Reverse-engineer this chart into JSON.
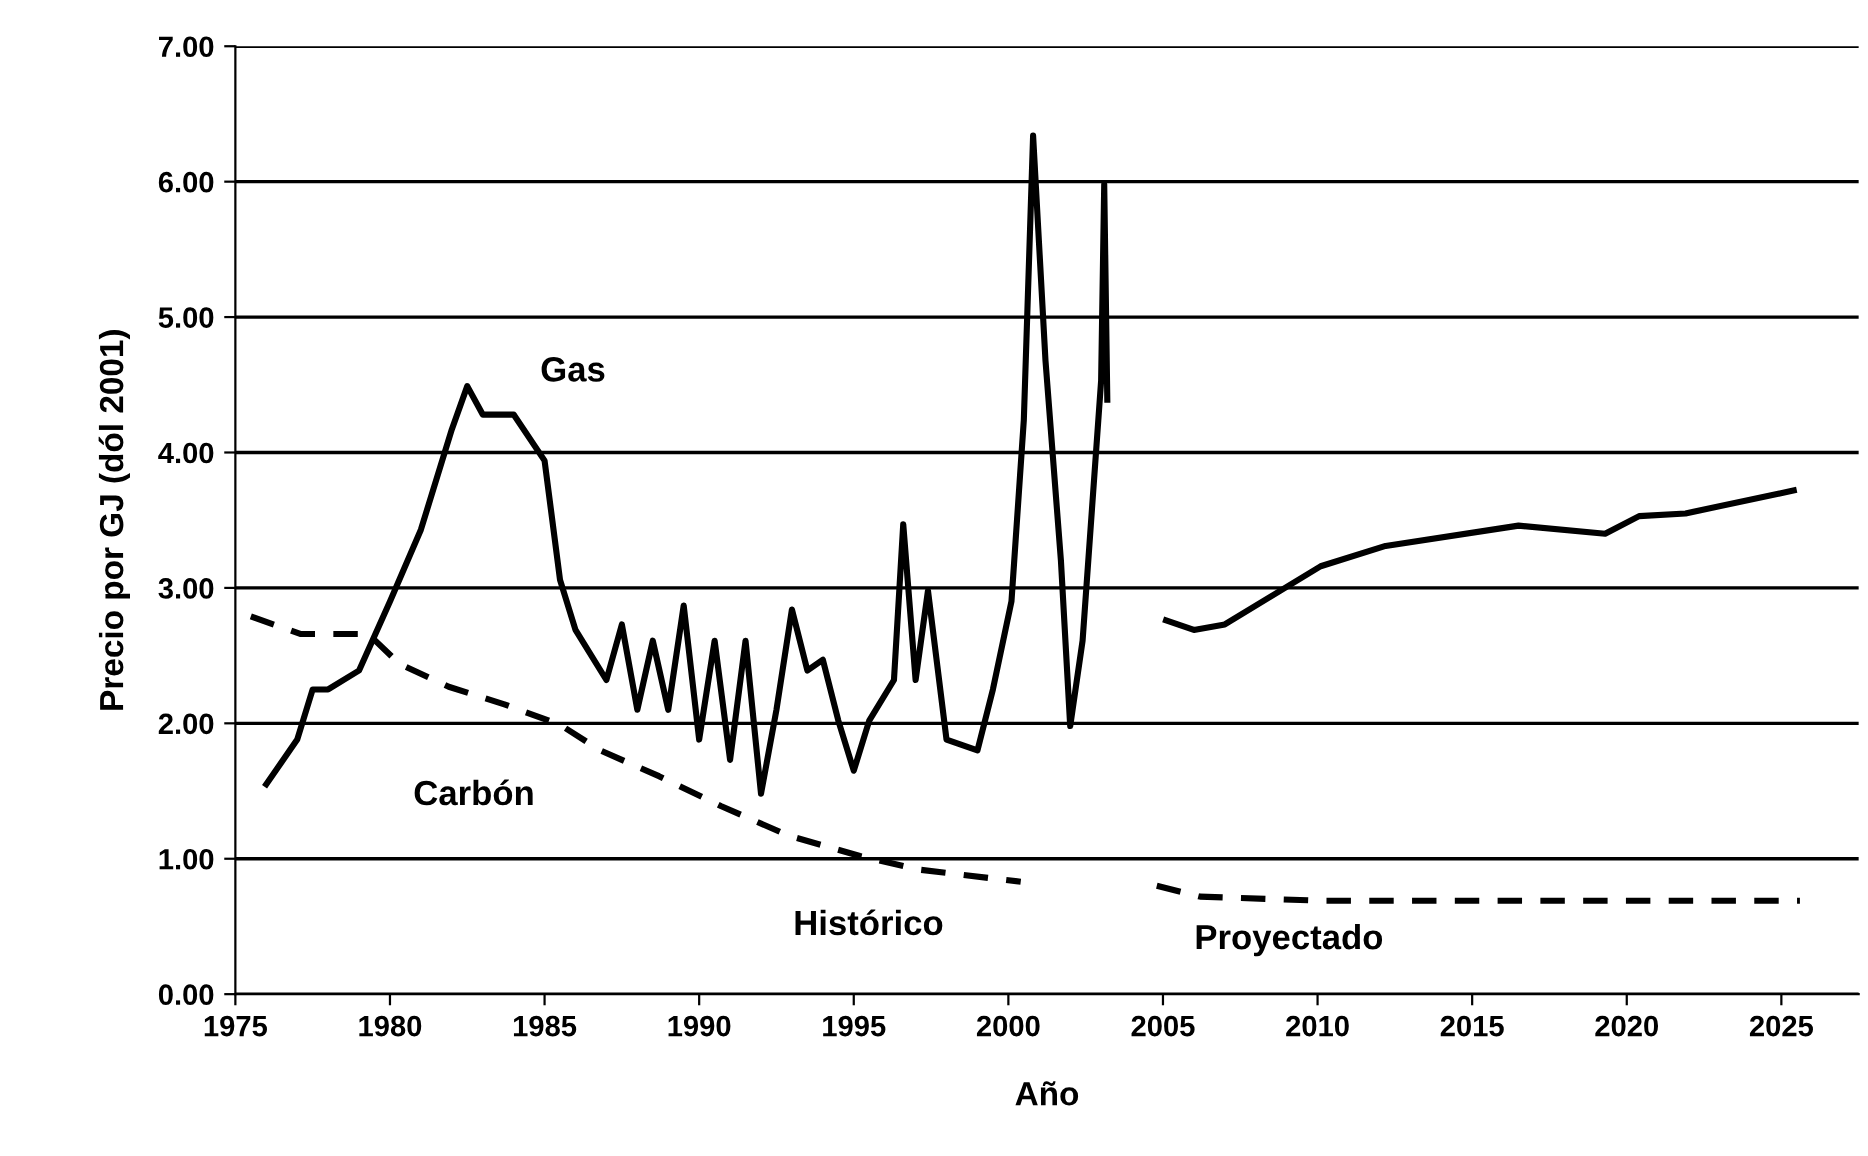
{
  "chart_data": {
    "type": "line",
    "xlabel": "Año",
    "ylabel": "Precio por GJ (dól 2001)",
    "xlim": [
      1975,
      2027.5
    ],
    "xticks": [
      1975,
      1980,
      1985,
      1990,
      1995,
      2000,
      2005,
      2010,
      2015,
      2020,
      2025
    ],
    "ylim": [
      0,
      7
    ],
    "yticks": [
      {
        "value": 0,
        "label": "0.00"
      },
      {
        "value": 1,
        "label": "1.00"
      },
      {
        "value": 2,
        "label": "2.00"
      },
      {
        "value": 3,
        "label": "3.00"
      },
      {
        "value": 4,
        "label": "4.00"
      },
      {
        "value": 5,
        "label": "5.00"
      },
      {
        "value": 6,
        "label": "6.00"
      },
      {
        "value": 7,
        "label": "7.00"
      }
    ],
    "grid": "y",
    "marker": "none",
    "series": [
      {
        "name": "Gas",
        "color": "#000000",
        "line_style": "solid",
        "x": [
          1976.0,
          1977.0,
          1977.5,
          1978.0,
          1979.0,
          1980.0,
          1981.0,
          1982.0,
          1982.5,
          1983.0,
          1984.0,
          1985.0,
          1985.5,
          1986.0,
          1987.0,
          1987.5,
          1988.0,
          1988.5,
          1989.0,
          1989.5,
          1990.0,
          1990.5,
          1991.0,
          1991.5,
          1992.0,
          1992.5,
          1993.0,
          1993.5,
          1994.0,
          1994.5,
          1995.0,
          1995.5,
          1996.3,
          1996.6,
          1997.0,
          1997.4,
          1998.0,
          1999.0,
          1999.5,
          2000.1,
          2000.5,
          2000.8,
          2001.2,
          2001.7,
          2002.0,
          2002.4,
          2003.0,
          2003.1,
          2003.2
        ],
        "values": [
          1.55,
          1.88,
          2.25,
          2.25,
          2.39,
          2.9,
          3.43,
          4.17,
          4.49,
          4.28,
          4.28,
          3.94,
          3.06,
          2.69,
          2.32,
          2.73,
          2.1,
          2.61,
          2.1,
          2.87,
          1.88,
          2.61,
          1.73,
          2.61,
          1.48,
          2.1,
          2.84,
          2.39,
          2.47,
          2.02,
          1.65,
          2.02,
          2.32,
          3.47,
          2.32,
          2.98,
          1.88,
          1.8,
          2.25,
          2.9,
          4.24,
          6.34,
          4.68,
          3.2,
          1.98,
          2.61,
          4.53,
          5.98,
          4.39
        ]
      },
      {
        "color": "#000000",
        "line_style": "solid",
        "x": [
          2005.1,
          2006.0,
          2007.0,
          2010.1,
          2012.2,
          2016.5,
          2019.3,
          2020.4,
          2021.9,
          2025.4
        ],
        "values": [
          2.76,
          2.69,
          2.73,
          3.16,
          3.31,
          3.46,
          3.4,
          3.53,
          3.55,
          3.72
        ]
      },
      {
        "name": "Carbón",
        "color": "#000000",
        "line_style": "dashed",
        "x": [
          1975.5,
          1977.1,
          1979.3,
          1980.3,
          1981.9,
          1983.7,
          1985.5,
          1986.8,
          1988.7,
          1990.7,
          1992.9,
          1995.2,
          1997.1,
          2000.4
        ],
        "values": [
          2.79,
          2.66,
          2.66,
          2.44,
          2.27,
          2.14,
          1.99,
          1.8,
          1.61,
          1.39,
          1.17,
          1.02,
          0.92,
          0.83
        ]
      },
      {
        "color": "#000000",
        "line_style": "dashed",
        "x": [
          2004.8,
          2006.2,
          2010.1,
          2025.6
        ],
        "values": [
          0.8,
          0.72,
          0.69,
          0.69
        ]
      }
    ],
    "annotations": [
      "Histórico",
      "Proyectado"
    ]
  }
}
